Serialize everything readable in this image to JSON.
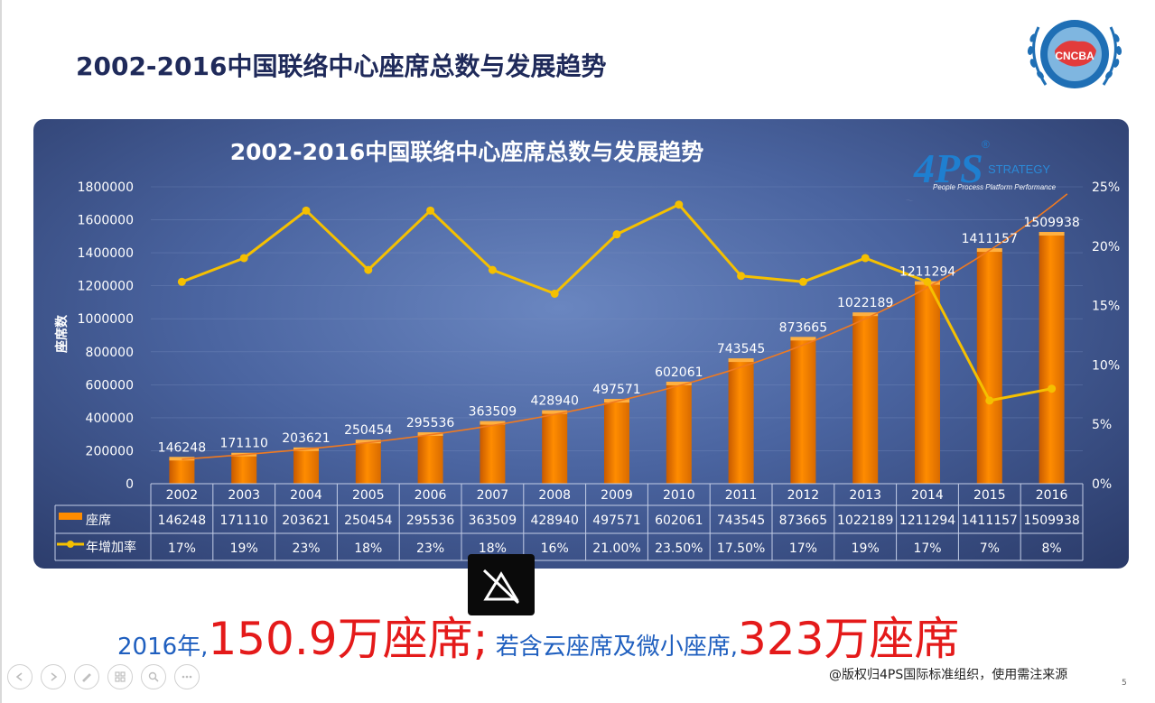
{
  "slide": {
    "title": "2002-2016中国联络中心座席总数与发展趋势",
    "page_number": "5",
    "copyright": "@版权归4PS国际标准组织，使用需注来源"
  },
  "logo_cncba": {
    "text": "CNCBA"
  },
  "logo_4ps": {
    "text": "4PS",
    "mark": "®",
    "strategy": "STRATEGY",
    "tagline": "People Process Platform Performance"
  },
  "summary": {
    "part1": "2016年,",
    "part2": "150.9万座席;",
    "part3": " 若含云座席及微小座席,",
    "part4": "323万座席"
  },
  "colors": {
    "bar": "#ff8c00",
    "line": "#f5c000",
    "trend": "#f07a20",
    "summary_blue": "#1f5fbf",
    "summary_red": "#e41a1a"
  },
  "chart_data": {
    "type": "bar",
    "title": "2002-2016中国联络中心座席总数与发展趋势",
    "ylabel": "座席数",
    "ylim": [
      0,
      1800000
    ],
    "y2lim": [
      0,
      25
    ],
    "yticks": [
      "0",
      "200000",
      "400000",
      "600000",
      "800000",
      "1000000",
      "1200000",
      "1400000",
      "1600000",
      "1800000"
    ],
    "y2ticks": [
      "0%",
      "5%",
      "10%",
      "15%",
      "20%",
      "25%"
    ],
    "categories": [
      "2002",
      "2003",
      "2004",
      "2005",
      "2006",
      "2007",
      "2008",
      "2009",
      "2010",
      "2011",
      "2012",
      "2013",
      "2014",
      "2015",
      "2016"
    ],
    "series": [
      {
        "name": "座席",
        "type": "bar",
        "values": [
          146248,
          171110,
          203621,
          250454,
          295536,
          363509,
          428940,
          497571,
          602061,
          743545,
          873665,
          1022189,
          1211294,
          1411157,
          1509938
        ]
      },
      {
        "name": "年增加率",
        "type": "line",
        "axis": "right",
        "values": [
          17,
          19,
          23,
          18,
          23,
          18,
          16,
          21,
          23.5,
          17.5,
          17,
          19,
          17,
          7,
          8
        ],
        "labels": [
          "17%",
          "19%",
          "23%",
          "18%",
          "23%",
          "18%",
          "16%",
          "21.00%",
          "23.50%",
          "17.50%",
          "17%",
          "19%",
          "17%",
          "7%",
          "8%"
        ]
      }
    ],
    "trendline": true,
    "table": true,
    "grid": true
  }
}
